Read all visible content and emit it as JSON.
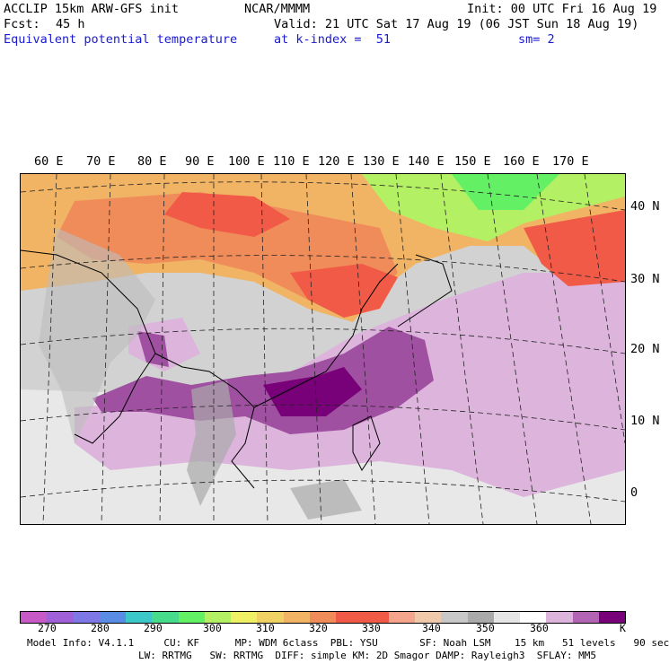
{
  "header": {
    "model": "ACCLIP 15km ARW-GFS init",
    "org": "NCAR/MMMM",
    "init": "Init: 00 UTC Fri 16 Aug 19",
    "fcst_label": "Fcst:",
    "fcst_value": "45 h",
    "valid": "Valid: 21 UTC Sat 17 Aug 19 (06 JST Sun 18 Aug 19)",
    "field": "Equivalent potential temperature",
    "level": "at k-index =  51",
    "smooth": "sm= 2"
  },
  "map": {
    "lon_labels": [
      "60 E",
      "70 E",
      "80 E",
      "90 E",
      "100 E",
      "110 E",
      "120 E",
      "130 E",
      "140 E",
      "150 E",
      "160 E",
      "170 E"
    ],
    "lat_labels": [
      "40 N",
      "30 N",
      "20 N",
      "10 N",
      "0"
    ]
  },
  "colorbar": {
    "colors": [
      "#c85ac8",
      "#a060d8",
      "#7d78e6",
      "#5a8ce6",
      "#3cc8c8",
      "#46dc8c",
      "#64f064",
      "#b4f064",
      "#f0f064",
      "#f0d264",
      "#f0b464",
      "#f08c5a",
      "#f05a46",
      "#f05a46",
      "#f5a58c",
      "#f0c8aa",
      "#c8c8c8",
      "#aaaaaa",
      "#e6e6e6",
      "#ffffff",
      "#dcb4dc",
      "#b464b4",
      "#780078"
    ],
    "tick_labels": [
      "270",
      "280",
      "290",
      "300",
      "310",
      "320",
      "330",
      "340",
      "350",
      "360"
    ],
    "unit": "K"
  },
  "footer": {
    "line1": "Model Info: V4.1.1     CU: KF      MP: WDM 6class  PBL: YSU       SF: Noah LSM    15 km   51 levels   90 sec",
    "line2": "LW: RRTMG   SW: RRTMG  DIFF: simple KM: 2D Smagor DAMP: Rayleigh3  SFLAY: MM5"
  }
}
